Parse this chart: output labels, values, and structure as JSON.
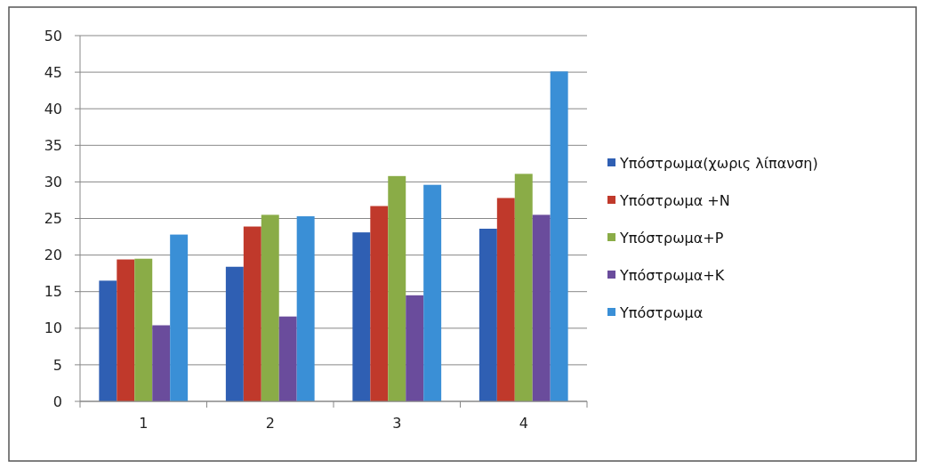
{
  "chart_data": {
    "type": "bar",
    "categories": [
      "1",
      "2",
      "3",
      "4"
    ],
    "series": [
      {
        "name": "Υπόστρωμα(χωρις λίπανση)",
        "color": "#2f5fb3",
        "values": [
          16.5,
          18.4,
          23.1,
          23.6
        ]
      },
      {
        "name": "Υπόστρωμα +N",
        "color": "#c0392b",
        "values": [
          19.4,
          23.9,
          26.7,
          27.8
        ]
      },
      {
        "name": "Υπόστρωμα+P",
        "color": "#8aac47",
        "values": [
          19.5,
          25.5,
          30.8,
          31.1
        ]
      },
      {
        "name": "Υπόστρωμα+K",
        "color": "#6a4c9c",
        "values": [
          10.4,
          11.6,
          14.5,
          25.5
        ]
      },
      {
        "name": "Υπόστρωμα",
        "color": "#3a8fd6",
        "values": [
          22.8,
          25.3,
          29.6,
          45.1
        ]
      }
    ],
    "ylim": [
      0,
      50
    ],
    "yticks": [
      0,
      5,
      10,
      15,
      20,
      25,
      30,
      35,
      40,
      45,
      50
    ],
    "grid": "y",
    "legend": "right"
  }
}
